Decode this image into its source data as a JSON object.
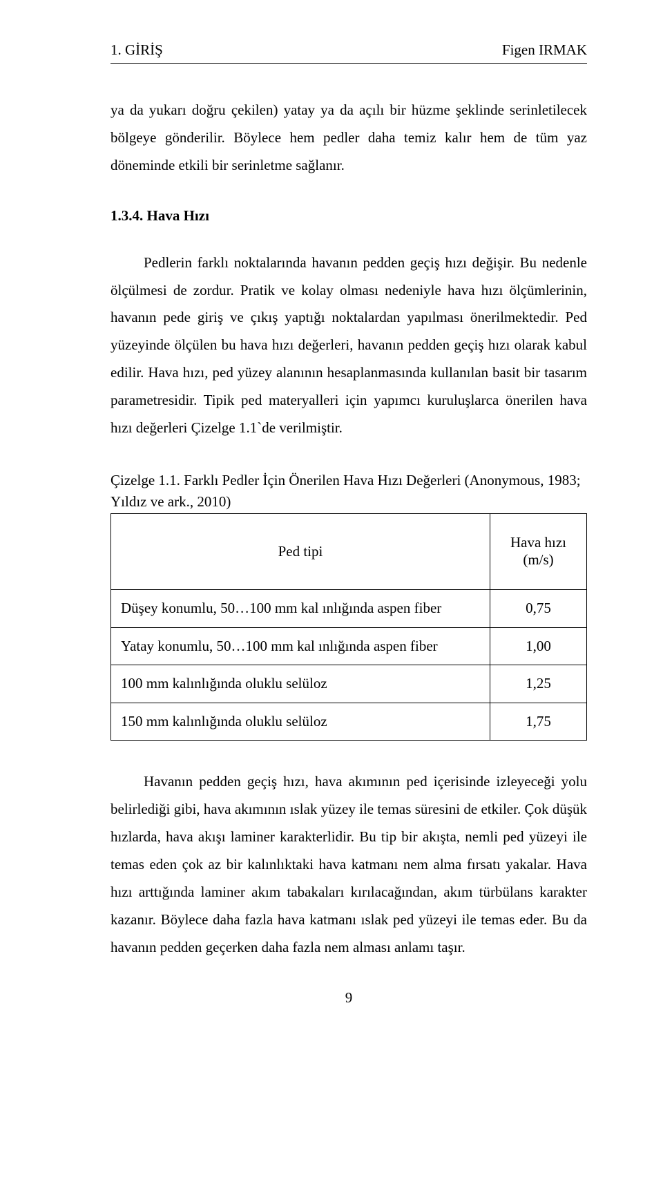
{
  "header": {
    "left": "1. GİRİŞ",
    "right": "Figen IRMAK"
  },
  "paragraphs": {
    "p1": "ya da yukarı doğru çekilen) yatay ya da açılı bir hüzme şeklinde serinletilecek bölgeye gönderilir. Böylece hem pedler daha temiz kalır hem de tüm yaz döneminde etkili bir serinletme sağlanır.",
    "section_num": "1.3.4. Hava Hızı",
    "p2": "Pedlerin farklı noktalarında havanın pedden geçiş hızı değişir. Bu nedenle ölçülmesi de zordur. Pratik ve kolay olması nedeniyle hava hızı ölçümlerinin, havanın pede giriş ve çıkış yaptığı noktalardan yapılması önerilmektedir. Ped yüzeyinde ölçülen bu hava hızı değerleri, havanın pedden geçiş hızı olarak kabul edilir. Hava hızı, ped yüzey alanının hesaplanmasında kullanılan basit bir tasarım parametresidir. Tipik ped materyalleri için yapımcı kuruluşlarca önerilen hava hızı değerleri Çizelge 1.1`de verilmiştir.",
    "caption": "Çizelge 1.1. Farklı Pedler İçin Önerilen Hava Hızı Değerleri (Anonymous, 1983; Yıldız ve ark., 2010)",
    "p3": "Havanın pedden geçiş hızı, hava akımının ped içerisinde izleyeceği yolu belirlediği gibi, hava akımının ıslak yüzey ile temas süresini de etkiler. Çok düşük hızlarda, hava akışı laminer karakterlidir. Bu tip bir akışta, nemli ped yüzeyi ile temas eden çok az bir kalınlıktaki hava katmanı nem alma fırsatı yakalar. Hava hızı arttığında laminer akım tabakaları kırılacağından, akım türbülans karakter kazanır. Böylece daha fazla hava katmanı ıslak ped yüzeyi ile temas eder. Bu da havanın pedden geçerken daha fazla nem alması anlamı taşır."
  },
  "table": {
    "col1_header": "Ped tipi",
    "col2_header_line1": "Hava hızı",
    "col2_header_line2": "(m/s)",
    "rows": [
      {
        "label": "Düşey konumlu, 50…100 mm kal ınlığında aspen fiber",
        "value": "0,75"
      },
      {
        "label": "Yatay konumlu, 50…100 mm kal ınlığında aspen fiber",
        "value": "1,00"
      },
      {
        "label": "100 mm kalınlığında oluklu selüloz",
        "value": "1,25"
      },
      {
        "label": "150 mm kalınlığında oluklu selüloz",
        "value": "1,75"
      }
    ]
  },
  "page_number": "9"
}
